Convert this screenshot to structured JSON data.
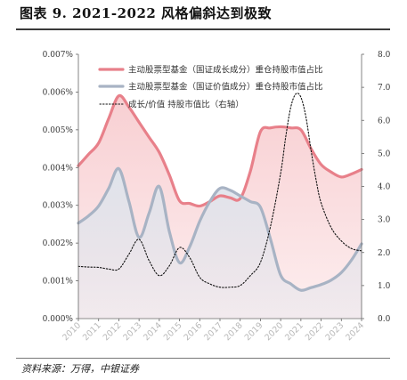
{
  "header": {
    "title": "图表 9. 2021-2022 风格偏斜达到极致",
    "source": "资料来源：万得，中银证券"
  },
  "chart_data": {
    "type": "line",
    "title": "图表 9. 2021-2022 风格偏斜达到极致",
    "categories": [
      "2010",
      "2011",
      "2012",
      "2013",
      "2014",
      "2015",
      "2016",
      "2017",
      "2018",
      "2019",
      "2020",
      "2021",
      "2022",
      "2023",
      "2024"
    ],
    "left_axis": {
      "min": 0,
      "max": 0.007,
      "ticks": [
        "0.000%",
        "0.001%",
        "0.002%",
        "0.003%",
        "0.004%",
        "0.005%",
        "0.006%",
        "0.007%"
      ]
    },
    "right_axis": {
      "min": 0,
      "max": 8,
      "ticks": [
        "0.0",
        "1.0",
        "2.0",
        "3.0",
        "4.0",
        "5.0",
        "6.0",
        "7.0",
        "8.0"
      ]
    },
    "series": [
      {
        "name": "主动股票型基金（国证成长成分）重仓持股市值占比",
        "axis": "left",
        "color": "#e8808a",
        "fill": "#f8cfd2",
        "x": [
          2010,
          2010.5,
          2011,
          2011.5,
          2012,
          2012.5,
          2013,
          2013.5,
          2014,
          2014.5,
          2015,
          2015.5,
          2016,
          2016.5,
          2017,
          2017.5,
          2018,
          2018.5,
          2019,
          2019.5,
          2020,
          2020.5,
          2021,
          2021.5,
          2022,
          2022.5,
          2023,
          2023.5,
          2024
        ],
        "values": [
          0.00405,
          0.00435,
          0.00465,
          0.0053,
          0.0059,
          0.0056,
          0.0052,
          0.0048,
          0.0044,
          0.0038,
          0.00312,
          0.00305,
          0.00298,
          0.0031,
          0.00325,
          0.0032,
          0.00318,
          0.0039,
          0.00495,
          0.00505,
          0.00508,
          0.00505,
          0.005,
          0.0045,
          0.00408,
          0.00388,
          0.00375,
          0.00383,
          0.00395
        ]
      },
      {
        "name": "主动股票型基金（国证价值成分）重仓持股市值占比",
        "axis": "left",
        "color": "#a8b3c4",
        "fill": "#dfe4ec",
        "x": [
          2010,
          2010.5,
          2011,
          2011.5,
          2012,
          2012.5,
          2013,
          2013.5,
          2014,
          2014.5,
          2015,
          2015.5,
          2016,
          2016.5,
          2017,
          2017.5,
          2018,
          2018.5,
          2019,
          2019.5,
          2020,
          2020.5,
          2021,
          2021.5,
          2022,
          2022.5,
          2023,
          2023.5,
          2024
        ],
        "values": [
          0.00253,
          0.00272,
          0.00298,
          0.00345,
          0.00397,
          0.0031,
          0.00215,
          0.0028,
          0.0035,
          0.0023,
          0.00148,
          0.0019,
          0.00258,
          0.0031,
          0.00345,
          0.0034,
          0.00325,
          0.0031,
          0.00295,
          0.0021,
          0.00115,
          0.00092,
          0.00075,
          0.00082,
          0.0009,
          0.00102,
          0.00122,
          0.00155,
          0.00198
        ]
      },
      {
        "name": "成长/价值 持股市值比（右轴）",
        "axis": "right",
        "color": "#111111",
        "dashed": true,
        "x": [
          2010,
          2010.5,
          2011,
          2011.5,
          2012,
          2012.5,
          2013,
          2013.5,
          2014,
          2014.5,
          2015,
          2015.5,
          2016,
          2016.5,
          2017,
          2017.5,
          2018,
          2018.5,
          2019,
          2019.5,
          2020,
          2020.25,
          2020.5,
          2020.75,
          2021,
          2021.25,
          2021.5,
          2021.75,
          2022,
          2022.5,
          2023,
          2023.5,
          2024
        ],
        "values": [
          1.58,
          1.56,
          1.55,
          1.5,
          1.5,
          1.95,
          2.4,
          1.75,
          1.3,
          1.6,
          2.15,
          1.85,
          1.25,
          1.05,
          0.95,
          0.95,
          1.0,
          1.3,
          1.7,
          2.8,
          4.4,
          5.5,
          6.4,
          6.8,
          6.7,
          6.1,
          5.1,
          4.2,
          3.5,
          2.75,
          2.35,
          2.12,
          2.05
        ]
      }
    ],
    "legend_position": "top-center",
    "grid": false
  }
}
